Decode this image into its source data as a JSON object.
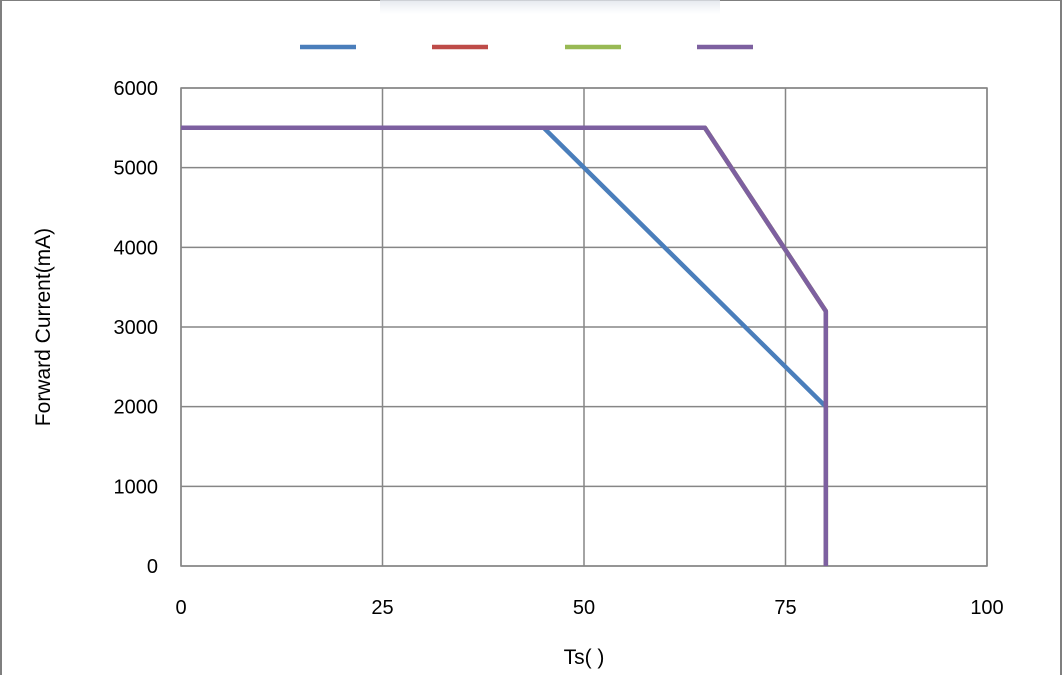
{
  "chart_data": {
    "type": "line",
    "xlabel": "Ts(    )",
    "ylabel": "Forward Current(mA)",
    "xlim": [
      0,
      100
    ],
    "ylim": [
      0,
      6000
    ],
    "x_ticks": [
      "0",
      "25",
      "50",
      "75",
      "100"
    ],
    "y_ticks": [
      "0",
      "1000",
      "2000",
      "3000",
      "4000",
      "5000",
      "6000"
    ],
    "grid": true,
    "legend_placement": "top",
    "series": [
      {
        "color": "#4a7ebb",
        "x": [
          0,
          45,
          80,
          80
        ],
        "y": [
          5500,
          5500,
          2000,
          0
        ]
      },
      {
        "color": "#be4b48",
        "x": [
          0,
          65,
          80,
          80
        ],
        "y": [
          5500,
          5500,
          3200,
          0
        ]
      },
      {
        "color": "#98b954",
        "x": [
          0,
          65,
          80,
          80
        ],
        "y": [
          5500,
          5500,
          3200,
          0
        ]
      },
      {
        "color": "#7d60a0",
        "x": [
          0,
          65,
          80,
          80
        ],
        "y": [
          5500,
          5500,
          3200,
          0
        ]
      }
    ]
  }
}
